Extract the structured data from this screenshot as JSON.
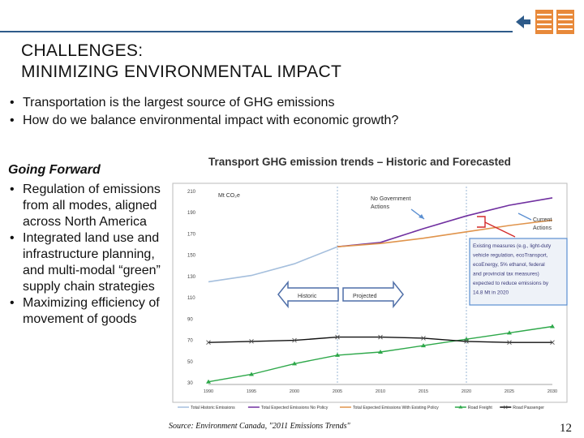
{
  "slide": {
    "title_line1": "CHALLENGES:",
    "title_line2": "MINIMIZING ENVIRONMENTAL IMPACT",
    "bullets_top": [
      "Transportation is the largest source of GHG emissions",
      "How do we balance environmental impact with economic growth?"
    ],
    "going_forward": "Going Forward",
    "bullets_left": [
      "Regulation of emissions from all modes, aligned across North America",
      "Integrated land use and infrastructure planning, and multi-modal “green” supply chain strategies",
      "Maximizing efficiency of movement of goods"
    ],
    "source": "Source: Environment Canada, \"2011 Emissions Trends\"",
    "page_number": "12",
    "colors": {
      "accent": "#2e5b8a",
      "logo_orange": "#e8893a"
    }
  },
  "chart_data": {
    "type": "line",
    "title": "Transport GHG emission trends – Historic and Forecasted",
    "ylabel": "Mt CO₂e",
    "ylim": [
      30,
      210
    ],
    "yticks": [
      30,
      50,
      70,
      90,
      110,
      130,
      150,
      170,
      190,
      210
    ],
    "xlim": [
      1990,
      2030
    ],
    "xticks": [
      "1990",
      "1995",
      "2000",
      "2005",
      "2010",
      "2015",
      "2020",
      "2025",
      "2030"
    ],
    "series": [
      {
        "name": "Total Historic Emissions",
        "color": "#a5bfdd",
        "marker": "none",
        "points": [
          [
            1990,
            125
          ],
          [
            1995,
            131
          ],
          [
            2000,
            142
          ],
          [
            2005,
            158
          ]
        ]
      },
      {
        "name": "Total Expected Emissions No Policy",
        "color": "#7030a0",
        "marker": "none",
        "points": [
          [
            2005,
            158
          ],
          [
            2010,
            162
          ],
          [
            2015,
            175
          ],
          [
            2020,
            187
          ],
          [
            2025,
            197
          ],
          [
            2030,
            204
          ]
        ]
      },
      {
        "name": "Total Expected Emissions With Existing Policy",
        "color": "#e0944c",
        "marker": "none",
        "points": [
          [
            2005,
            158
          ],
          [
            2010,
            161
          ],
          [
            2015,
            166
          ],
          [
            2020,
            172
          ],
          [
            2025,
            178
          ],
          [
            2030,
            183
          ]
        ]
      },
      {
        "name": "Road Freight",
        "color": "#2ea84a",
        "marker": "triangle",
        "points": [
          [
            1990,
            31
          ],
          [
            1995,
            38
          ],
          [
            2000,
            48
          ],
          [
            2005,
            56
          ],
          [
            2010,
            59
          ],
          [
            2015,
            65
          ],
          [
            2020,
            71
          ],
          [
            2025,
            77
          ],
          [
            2030,
            83
          ]
        ]
      },
      {
        "name": "Road Passenger",
        "color": "#111111",
        "marker": "x",
        "points": [
          [
            1990,
            68
          ],
          [
            1995,
            69
          ],
          [
            2000,
            70
          ],
          [
            2005,
            73
          ],
          [
            2010,
            73
          ],
          [
            2015,
            72
          ],
          [
            2020,
            69
          ],
          [
            2025,
            68
          ],
          [
            2030,
            68
          ]
        ]
      }
    ],
    "annotations": {
      "no_gov": "No Government Actions",
      "current": "Current Actions",
      "historic": "Historic",
      "projected": "Projected",
      "box_text": [
        "Existing measures (e.g., light-duty",
        "vehicle regulation, ecoTransport,",
        "ecoEnergy, 5% ethanol, federal",
        "and provincial tax measures)",
        "expected to reduce emissions by",
        "14.8 Mt in 2020"
      ]
    }
  }
}
